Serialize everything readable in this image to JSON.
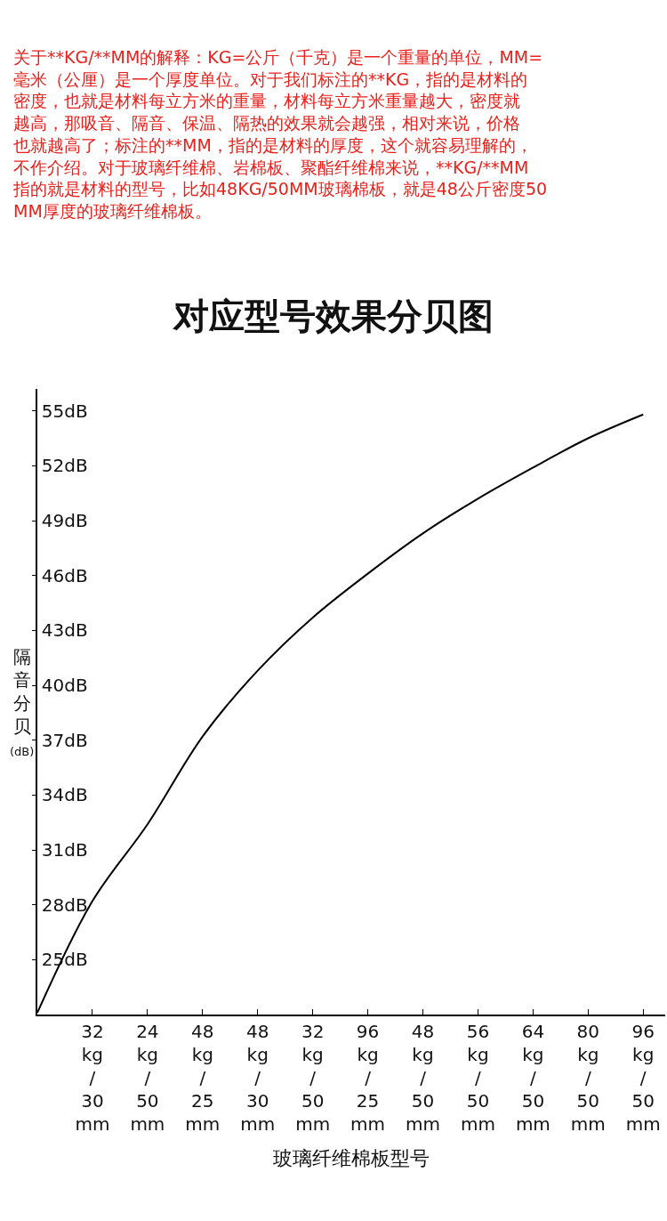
{
  "chart_data": {
    "type": "line",
    "title": "对应型号效果分贝图",
    "xlabel": "玻璃纤维棉板型号",
    "ylabel": "隔音分贝(dB)",
    "annotations": [
      "关于**KG/**MM的解释：KG=公斤（千克）是一个重量的单位，MM=毫米（公厘）是一个厚度单位。对于我们标注的**KG，指的是材料的密度，也就是材料每立方米的重量，材料每立方米重量越大，密度就越高，那吸音、隔音、保温、隔热的效果就会越强，相对来说，价格也就越高了；标注的**MM，指的是材料的厚度，这个就容易理解的，不作介绍。对于玻璃纤维棉、岩棉板、聚酯纤维棉来说，**KG/**MM指的就是材料的型号，比如48KG/50MM玻璃棉板，就是48公斤密度50MM厚度的玻璃纤维棉板。"
    ],
    "categories": [
      null,
      "32 kg/30 mm",
      "24 kg/50 mm",
      "48 kg/25 mm",
      "48 kg/30 mm",
      "32 kg/50 mm",
      "96 kg/25 mm",
      "48 kg/50 mm",
      "56 kg/50 mm",
      "64 kg/50 mm",
      "80 kg/50 mm",
      "96 kg/50 mm"
    ],
    "series": [
      {
        "color": "#000000",
        "values": [
          22.1,
          28.2,
          32.4,
          37.2,
          40.8,
          43.7,
          46.1,
          48.3,
          50.2,
          51.9,
          53.5,
          54.8
        ]
      }
    ],
    "ylim": [
      22,
      56.2
    ],
    "yticks": [
      {
        "value": 25,
        "label": "25dB"
      },
      {
        "value": 28,
        "label": "28dB"
      },
      {
        "value": 31,
        "label": "31dB"
      },
      {
        "value": 34,
        "label": "34dB"
      },
      {
        "value": 37,
        "label": "37dB"
      },
      {
        "value": 40,
        "label": "40dB"
      },
      {
        "value": 43,
        "label": "43dB"
      },
      {
        "value": 46,
        "label": "46dB"
      },
      {
        "value": 49,
        "label": "49dB"
      },
      {
        "value": 52,
        "label": "52dB"
      },
      {
        "value": 55,
        "label": "55dB"
      }
    ],
    "marker": "none",
    "line_style": "solid"
  }
}
